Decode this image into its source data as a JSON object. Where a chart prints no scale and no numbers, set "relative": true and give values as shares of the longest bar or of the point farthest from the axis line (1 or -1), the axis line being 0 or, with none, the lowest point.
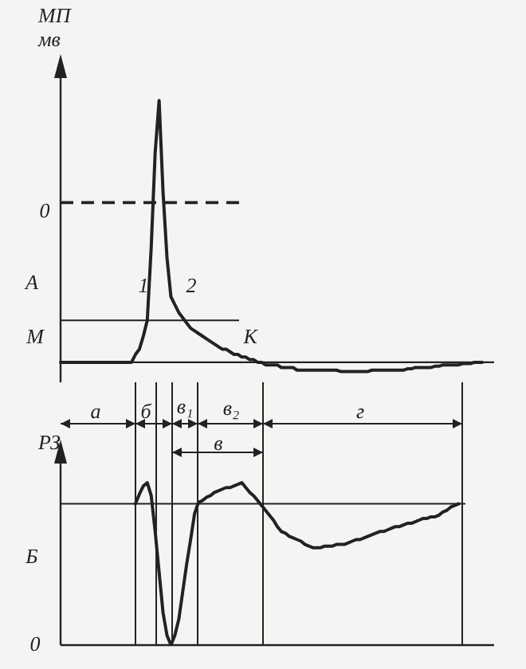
{
  "chart_data": [
    {
      "type": "line",
      "ylabel": "МП\nмв",
      "relative": true,
      "legend": false,
      "marker": "none",
      "line_style": "solid",
      "categories": [
        null,
        null,
        null,
        null,
        null,
        null,
        null,
        null,
        null,
        null,
        null,
        null,
        null,
        null,
        null,
        null,
        null,
        null,
        null,
        null,
        null,
        null,
        null,
        null,
        null,
        null,
        null,
        null,
        null,
        null,
        null,
        null,
        null,
        null,
        null,
        null,
        null,
        null,
        null,
        null,
        null,
        null,
        null,
        null,
        null,
        null,
        null,
        null,
        null,
        null,
        null,
        null,
        null,
        null,
        null,
        null,
        null,
        null,
        null,
        null,
        null,
        null,
        null,
        null,
        null,
        null,
        null,
        null,
        null,
        null,
        null,
        null,
        null,
        null,
        null,
        null,
        null,
        null,
        null,
        null,
        null,
        null,
        null,
        null,
        null,
        null,
        null,
        null,
        null,
        null,
        null,
        null,
        null,
        null,
        null,
        null,
        null,
        null,
        null,
        null,
        null,
        null,
        null,
        null,
        null,
        null,
        null,
        null,
        null,
        null,
        null
      ],
      "series": [
        {
          "color": "#222222",
          "values": [
            0,
            0,
            0,
            0,
            0,
            0,
            0,
            0,
            0,
            0,
            0,
            0,
            0,
            0,
            0,
            0,
            0,
            0,
            0,
            0.03,
            0.05,
            0.1,
            0.16,
            0.44,
            0.8,
            1,
            0.65,
            0.4,
            0.25,
            0.22,
            0.19,
            0.17,
            0.15,
            0.13,
            0.12,
            0.11,
            0.1,
            0.09,
            0.08,
            0.07,
            0.06,
            0.05,
            0.05,
            0.04,
            0.03,
            0.03,
            0.02,
            0.02,
            0.01,
            0.01,
            0,
            0,
            -0.01,
            -0.01,
            -0.01,
            -0.01,
            -0.02,
            -0.02,
            -0.02,
            -0.02,
            -0.03,
            -0.03,
            -0.03,
            -0.03,
            -0.03,
            -0.03,
            -0.03,
            -0.03,
            -0.03,
            -0.03,
            -0.03,
            -0.035,
            -0.035,
            -0.035,
            -0.035,
            -0.035,
            -0.035,
            -0.035,
            -0.035,
            -0.03,
            -0.03,
            -0.03,
            -0.03,
            -0.03,
            -0.03,
            -0.03,
            -0.03,
            -0.03,
            -0.025,
            -0.025,
            -0.02,
            -0.02,
            -0.02,
            -0.02,
            -0.02,
            -0.015,
            -0.015,
            -0.01,
            -0.01,
            -0.01,
            -0.01,
            -0.01,
            -0.005,
            -0.005,
            -0.005,
            0,
            0,
            0,
            null,
            null,
            null
          ]
        }
      ],
      "ref_lines": [
        {
          "axis": "y",
          "value": 0.61,
          "line_style": "dashed"
        },
        {
          "axis": "y",
          "value": 0.16,
          "line_style": "solid"
        }
      ],
      "annotations": [
        "0",
        "А",
        "М",
        "К",
        "1",
        "2",
        "а",
        "б",
        "в₁",
        "в₂",
        "г",
        "в"
      ]
    },
    {
      "type": "line",
      "ylabel": "РЗ",
      "relative": true,
      "legend": false,
      "marker": "none",
      "line_style": "solid",
      "categories": [
        null,
        null,
        null,
        null,
        null,
        null,
        null,
        null,
        null,
        null,
        null,
        null,
        null,
        null,
        null,
        null,
        null,
        null,
        null,
        null,
        null,
        null,
        null,
        null,
        null,
        null,
        null,
        null,
        null,
        null,
        null,
        null,
        null,
        null,
        null,
        null,
        null,
        null,
        null,
        null,
        null,
        null,
        null,
        null,
        null,
        null,
        null,
        null,
        null,
        null,
        null,
        null,
        null,
        null,
        null,
        null,
        null,
        null,
        null,
        null,
        null,
        null,
        null,
        null,
        null,
        null,
        null,
        null,
        null,
        null,
        null,
        null,
        null,
        null,
        null,
        null,
        null,
        null,
        null,
        null,
        null,
        null,
        null,
        null,
        null,
        null,
        null,
        null,
        null,
        null,
        null,
        null,
        null,
        null,
        null,
        null,
        null,
        null,
        null,
        null,
        null,
        null,
        null,
        null,
        null,
        null,
        null,
        null,
        null,
        null,
        null
      ],
      "series": [
        {
          "color": "#222222",
          "values": [
            null,
            null,
            null,
            null,
            null,
            null,
            null,
            null,
            null,
            null,
            null,
            null,
            null,
            null,
            null,
            null,
            null,
            null,
            null,
            0.87,
            0.93,
            0.98,
            1,
            0.92,
            0.7,
            0.45,
            0.2,
            0.06,
            0,
            0.06,
            0.16,
            0.33,
            0.5,
            0.65,
            0.81,
            0.88,
            0.89,
            0.91,
            0.92,
            0.94,
            0.95,
            0.96,
            0.97,
            0.97,
            0.98,
            0.99,
            1,
            0.97,
            0.94,
            0.92,
            0.89,
            0.86,
            0.83,
            0.8,
            0.77,
            0.73,
            0.7,
            0.69,
            0.67,
            0.66,
            0.65,
            0.64,
            0.62,
            0.61,
            0.6,
            0.6,
            0.6,
            0.61,
            0.61,
            0.61,
            0.62,
            0.62,
            0.62,
            0.63,
            0.64,
            0.65,
            0.65,
            0.66,
            0.67,
            0.68,
            0.69,
            0.7,
            0.7,
            0.71,
            0.72,
            0.73,
            0.73,
            0.74,
            0.75,
            0.75,
            0.76,
            0.77,
            0.78,
            0.78,
            0.79,
            0.79,
            0.8,
            0.82,
            0.83,
            0.85,
            0.86,
            0.87,
            null,
            null,
            null,
            null,
            null,
            null,
            null,
            null,
            null
          ]
        }
      ],
      "ref_lines": [
        {
          "axis": "y",
          "value": 0.87,
          "line_style": "solid"
        }
      ],
      "annotations": [
        "Б",
        "0"
      ]
    }
  ]
}
